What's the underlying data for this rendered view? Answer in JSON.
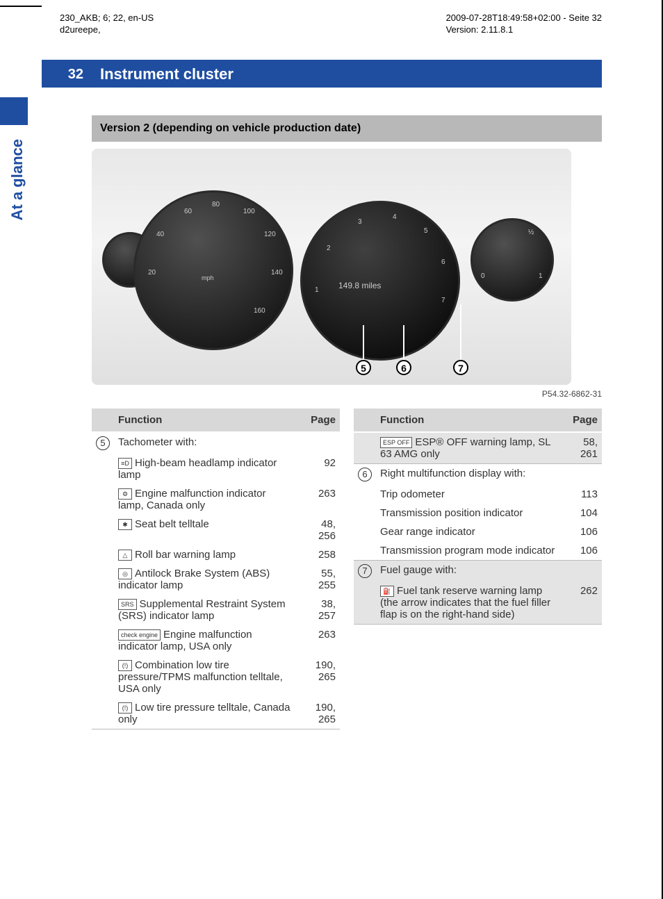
{
  "meta": {
    "left1": "230_AKB; 6; 22, en-US",
    "left2": "d2ureepe,",
    "right1": "2009-07-28T18:49:58+02:00 - Seite 32",
    "right2": "Version: 2.11.8.1"
  },
  "page_number": "32",
  "chapter_title": "Instrument cluster",
  "section_title": "Version 2 (depending on vehicle production date)",
  "side_label": "At a glance",
  "figure_id": "P54.32-6862-31",
  "figure": {
    "speed_ticks": [
      "20",
      "40",
      "60",
      "80",
      "100",
      "120",
      "140",
      "160"
    ],
    "tach_ticks": [
      "1",
      "2",
      "3",
      "4",
      "5",
      "6",
      "7"
    ],
    "miles": "149.8 miles",
    "fuel_marks": [
      "0",
      "½",
      "1"
    ]
  },
  "table_headers": {
    "func": "Function",
    "page": "Page"
  },
  "left_rows": [
    {
      "num": "5",
      "items": [
        {
          "sym": "",
          "text": "Tachometer with:",
          "page": ""
        },
        {
          "sym": "≡D",
          "text": "High-beam headlamp indicator lamp",
          "page": "92"
        },
        {
          "sym": "⚙",
          "text": "Engine malfunction indicator lamp, Canada only",
          "page": "263"
        },
        {
          "sym": "✱",
          "text": "Seat belt telltale",
          "page": "48, 256"
        },
        {
          "sym": "△",
          "text": "Roll bar warning lamp",
          "page": "258"
        },
        {
          "sym": "◎",
          "text": "Antilock Brake System (ABS) indicator lamp",
          "page": "55, 255"
        },
        {
          "sym": "SRS",
          "text": "Supplemental Restraint System (SRS) indicator lamp",
          "page": "38, 257"
        },
        {
          "sym": "check engine",
          "text": "Engine malfunction indicator lamp, USA only",
          "page": "263"
        },
        {
          "sym": "(!)",
          "text": "Combination low tire pressure/TPMS malfunction telltale, USA only",
          "page": "190, 265"
        },
        {
          "sym": "(!)",
          "text": "Low tire pressure telltale, Canada only",
          "page": "190, 265"
        }
      ]
    }
  ],
  "right_rows": [
    {
      "num": "",
      "items": [
        {
          "sym": "ESP OFF",
          "text": "ESP® OFF warning lamp, SL 63 AMG only",
          "page": "58, 261"
        }
      ]
    },
    {
      "num": "6",
      "items": [
        {
          "sym": "",
          "text": "Right multifunction display with:",
          "page": ""
        },
        {
          "sym": "",
          "text": "Trip odometer",
          "page": "113"
        },
        {
          "sym": "",
          "text": "Transmission position indicator",
          "page": "104"
        },
        {
          "sym": "",
          "text": "Gear range indicator",
          "page": "106"
        },
        {
          "sym": "",
          "text": "Transmission program mode indicator",
          "page": "106"
        }
      ]
    },
    {
      "num": "7",
      "items": [
        {
          "sym": "",
          "text": "Fuel gauge with:",
          "page": ""
        },
        {
          "sym": "⛽",
          "text": "Fuel tank reserve warning lamp (the arrow indicates that the fuel filler flap is on the right-hand side)",
          "page": "262"
        }
      ]
    }
  ]
}
